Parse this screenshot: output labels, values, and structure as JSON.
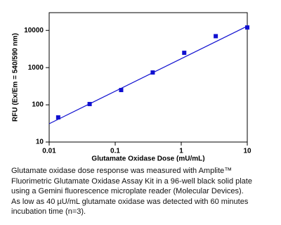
{
  "chart_data": {
    "type": "scatter",
    "x_label": "Glutamate Oxidase Dose (mU/mL)",
    "y_label": "RFU (Ex/Em = 540/590 nm)",
    "x": [
      0.0137,
      0.041,
      0.123,
      0.37,
      1.11,
      3.33,
      10
    ],
    "values": [
      46,
      105,
      250,
      740,
      2500,
      7000,
      12000
    ],
    "color": "#1010d0",
    "fit": {
      "x": [
        0.01,
        10
      ],
      "values": [
        31,
        13000
      ],
      "color": "#1010d0"
    },
    "log_x": true,
    "log_y": true,
    "xlim": [
      0.01,
      10
    ],
    "ylim": [
      10,
      30000
    ],
    "xticks": [
      0.01,
      0.1,
      1,
      10
    ],
    "yticks": [
      10,
      100,
      1000,
      10000
    ]
  },
  "caption": {
    "lines": [
      "Glutamate oxidase dose response was measured with Amplite™",
      "Fluorimetric Glutamate Oxidase Assay Kit in a 96-well black solid plate",
      "using a Gemini fluorescence microplate reader (Molecular Devices).",
      "As low as 40 µU/mL glutamate oxidase was detected with 60 minutes",
      "incubation time (n=3)."
    ]
  }
}
